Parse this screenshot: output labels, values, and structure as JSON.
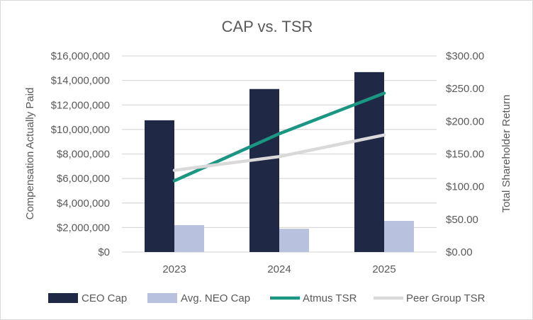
{
  "chart_data": {
    "type": "bar",
    "title": "CAP vs. TSR",
    "categories": [
      "2023",
      "2024",
      "2025"
    ],
    "ylabel": "Compensation Actually Paid",
    "y2label": "Total Shareholder Return",
    "ylim": [
      0,
      16000000
    ],
    "y2lim": [
      0,
      300
    ],
    "yticks": [
      "$0",
      "$2,000,000",
      "$4,000,000",
      "$6,000,000",
      "$8,000,000",
      "$10,000,000",
      "$12,000,000",
      "$14,000,000",
      "$16,000,000"
    ],
    "y2ticks": [
      "$0.00",
      "$50.00",
      "$100.00",
      "$150.00",
      "$200.00",
      "$250.00",
      "$300.00"
    ],
    "grid": true,
    "legend_placement": "bottom",
    "series": [
      {
        "name": "CEO Cap",
        "type": "bar",
        "axis": "left",
        "color": "#1f2845",
        "values": [
          10750000,
          13300000,
          14680000
        ]
      },
      {
        "name": "Avg. NEO Cap",
        "type": "bar",
        "axis": "left",
        "color": "#b8c1de",
        "values": [
          2200000,
          1900000,
          2540000
        ]
      },
      {
        "name": "Atmus TSR",
        "type": "line",
        "axis": "right",
        "color": "#1a9683",
        "values": [
          109,
          181,
          243
        ]
      },
      {
        "name": "Peer Group TSR",
        "type": "line",
        "axis": "right",
        "color": "#d9d9d9",
        "values": [
          125,
          146,
          179
        ]
      }
    ]
  }
}
